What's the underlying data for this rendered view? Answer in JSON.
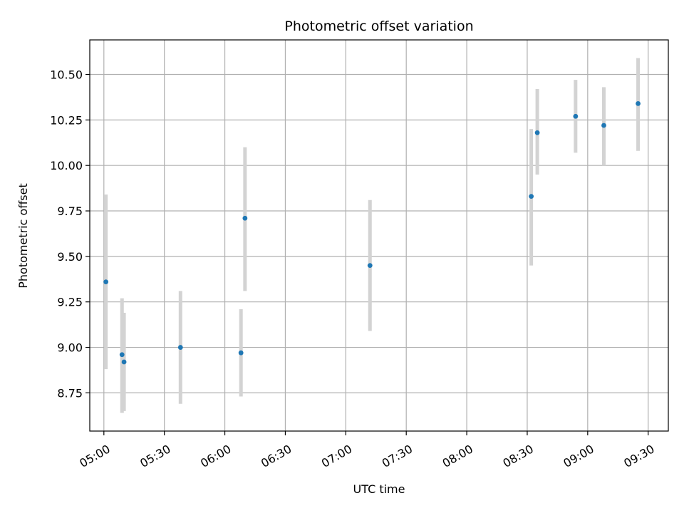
{
  "chart_data": {
    "type": "scatter",
    "title": "Photometric offset variation",
    "xlabel": "UTC time",
    "ylabel": "Photometric offset",
    "grid": true,
    "x_axis": {
      "ticks": [
        "05:00",
        "05:30",
        "06:00",
        "06:30",
        "07:00",
        "07:30",
        "08:00",
        "08:30",
        "09:00",
        "09:30"
      ],
      "xlim": [
        "04:53",
        "09:40"
      ]
    },
    "y_axis": {
      "ticks": [
        "8.75",
        "9.00",
        "9.25",
        "9.50",
        "9.75",
        "10.00",
        "10.25",
        "10.50"
      ],
      "ylim": [
        8.54,
        10.69
      ]
    },
    "series": [
      {
        "marker_color": "#1f77b4",
        "error_color": "#d3d3d3",
        "points": [
          {
            "x": "05:01",
            "y": 9.36,
            "yerr_low": 8.88,
            "yerr_high": 9.84
          },
          {
            "x": "05:09",
            "y": 8.96,
            "yerr_low": 8.64,
            "yerr_high": 9.27
          },
          {
            "x": "05:10",
            "y": 8.92,
            "yerr_low": 8.65,
            "yerr_high": 9.19
          },
          {
            "x": "05:38",
            "y": 9.0,
            "yerr_low": 8.69,
            "yerr_high": 9.31
          },
          {
            "x": "06:08",
            "y": 8.97,
            "yerr_low": 8.73,
            "yerr_high": 9.21
          },
          {
            "x": "06:10",
            "y": 9.71,
            "yerr_low": 9.31,
            "yerr_high": 10.1
          },
          {
            "x": "07:12",
            "y": 9.45,
            "yerr_low": 9.09,
            "yerr_high": 9.81
          },
          {
            "x": "08:32",
            "y": 9.83,
            "yerr_low": 9.45,
            "yerr_high": 10.2
          },
          {
            "x": "08:35",
            "y": 10.18,
            "yerr_low": 9.95,
            "yerr_high": 10.42
          },
          {
            "x": "08:54",
            "y": 10.27,
            "yerr_low": 10.07,
            "yerr_high": 10.47
          },
          {
            "x": "09:08",
            "y": 10.22,
            "yerr_low": 10.0,
            "yerr_high": 10.43
          },
          {
            "x": "09:25",
            "y": 10.34,
            "yerr_low": 10.08,
            "yerr_high": 10.59
          }
        ]
      }
    ]
  }
}
